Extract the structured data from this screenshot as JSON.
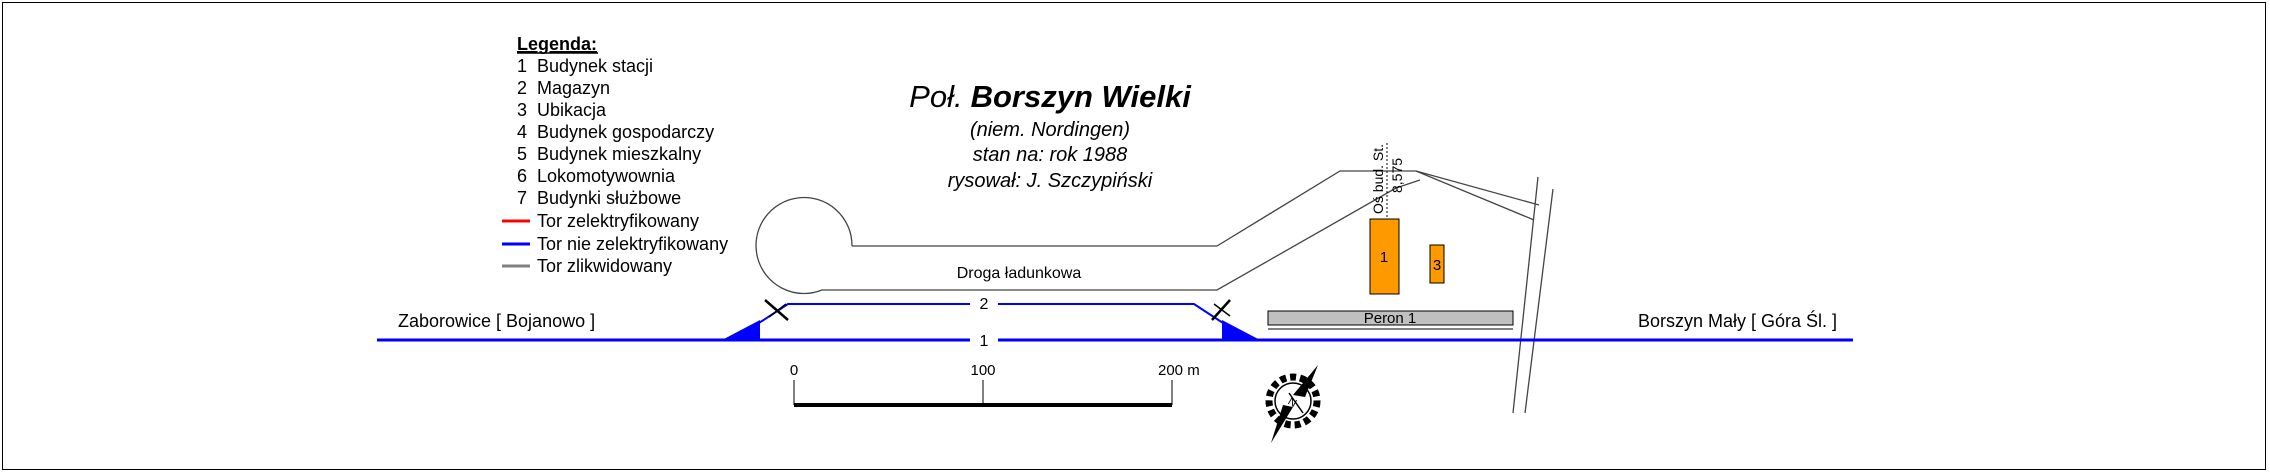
{
  "legend": {
    "title": "Legenda:",
    "items": [
      {
        "num": "1",
        "label": "Budynek stacji"
      },
      {
        "num": "2",
        "label": "Magazyn"
      },
      {
        "num": "3",
        "label": "Ubikacja"
      },
      {
        "num": "4",
        "label": "Budynek gospodarczy"
      },
      {
        "num": "5",
        "label": "Budynek mieszkalny"
      },
      {
        "num": "6",
        "label": "Lokomotywownia"
      },
      {
        "num": "7",
        "label": "Budynki służbowe"
      }
    ],
    "lines": [
      {
        "label": "Tor zelektryfikowany",
        "color": "#ff0000"
      },
      {
        "label": "Tor nie zelektryfikowany",
        "color": "#0000ff"
      },
      {
        "label": "Tor zlikwidowany",
        "color": "#808080"
      }
    ]
  },
  "title": {
    "prefix": "Poł.",
    "name": "Borszyn Wielki",
    "subtitle_1": "(niem. Nordingen)",
    "subtitle_2": "stan na: rok 1988",
    "subtitle_3": "rysował: J. Szczypiński"
  },
  "labels": {
    "road": "Droga ładunkowa",
    "left_direction": "Zaborowice [ Bojanowo ]",
    "right_direction": "Borszyn Mały [ Góra Śl. ]",
    "platform": "Peron 1",
    "track_1": "1",
    "track_2": "2",
    "building_1": "1",
    "building_3": "3",
    "axis_line_1": "Oś bud. St.",
    "axis_line_2": "8,575"
  },
  "scale": {
    "ticks": [
      "0",
      "100",
      "200 m"
    ]
  },
  "compass": {
    "label": "N"
  },
  "colors": {
    "track": "#0000ff",
    "building": "#ff9900",
    "platform": "#c0c0c0",
    "road": "#444444"
  }
}
